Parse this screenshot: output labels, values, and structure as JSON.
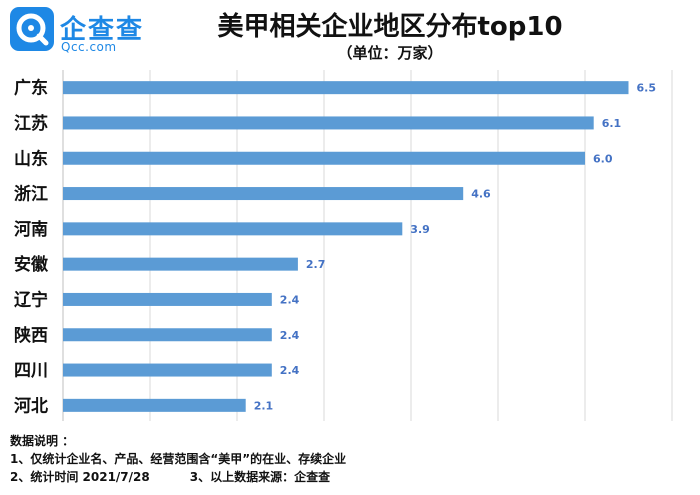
{
  "logo": {
    "name": "企查查",
    "subtext": "Qcc.com",
    "color": "#1e88e5"
  },
  "header": {
    "title": "美甲相关企业地区分布top10",
    "subtitle": "（单位：万家）"
  },
  "chart_data": {
    "type": "bar",
    "orientation": "horizontal",
    "categories": [
      "广东",
      "江苏",
      "山东",
      "浙江",
      "河南",
      "安徽",
      "辽宁",
      "陕西",
      "四川",
      "河北"
    ],
    "values": [
      6.5,
      6.1,
      6.0,
      4.6,
      3.9,
      2.7,
      2.4,
      2.4,
      2.4,
      2.1
    ],
    "value_labels": [
      "6.5",
      "6.1",
      "6.0",
      "4.6",
      "3.9",
      "2.7",
      "2.4",
      "2.4",
      "2.4",
      "2.1"
    ],
    "xlim": [
      0,
      7
    ],
    "grid": true,
    "bar_color": "#5b9bd5",
    "label_color": "#4472c4"
  },
  "notes": {
    "heading": "数据说明 ：",
    "line1": "1、仅统计企业名、产品、经营范围含“美甲”的在业、存续企业",
    "line2a": "2、统计时间  2021/7/28",
    "line2b": "3、以上数据来源：企查查"
  }
}
